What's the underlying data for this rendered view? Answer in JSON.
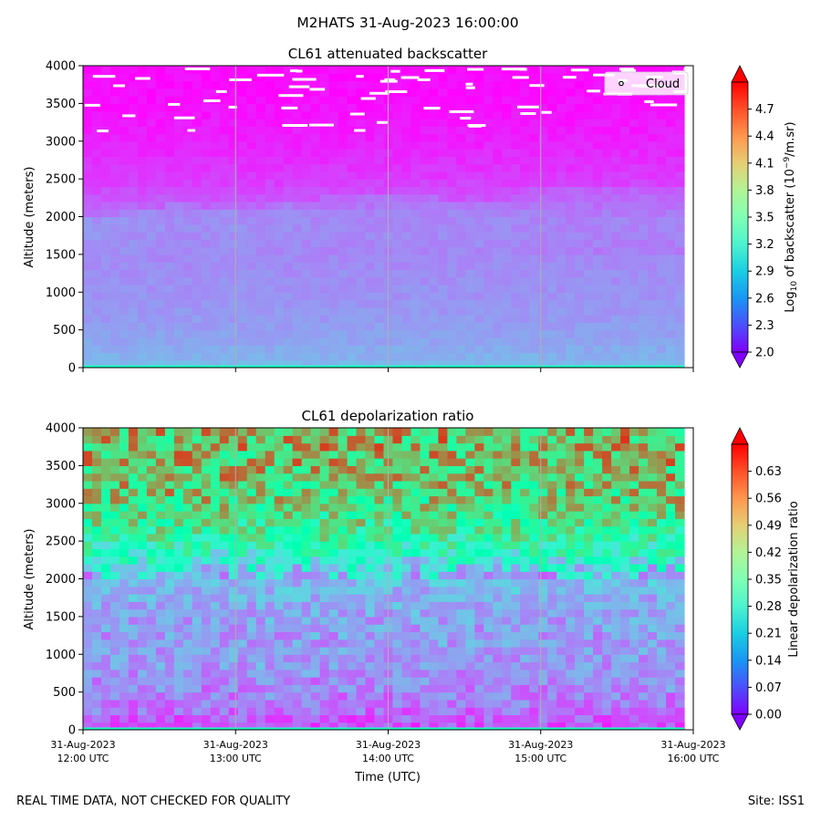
{
  "figure": {
    "title": "M2HATS 31-Aug-2023 16:00:00",
    "footer_left": "REAL TIME DATA, NOT CHECKED FOR QUALITY",
    "footer_right": "Site: ISS1",
    "xlabel": "Time (UTC)"
  },
  "chart_data": [
    {
      "type": "heatmap",
      "title": "CL61 attenuated backscatter",
      "ylabel": "Altitude (meters)",
      "ylim": [
        0,
        4000
      ],
      "yticks": [
        "0",
        "500",
        "1000",
        "1500",
        "2000",
        "2500",
        "3000",
        "3500",
        "4000"
      ],
      "x_ticks": [
        {
          "date": "31-Aug-2023",
          "time": "12:00 UTC"
        },
        {
          "date": "31-Aug-2023",
          "time": "13:00 UTC"
        },
        {
          "date": "31-Aug-2023",
          "time": "14:00 UTC"
        },
        {
          "date": "31-Aug-2023",
          "time": "15:00 UTC"
        },
        {
          "date": "31-Aug-2023",
          "time": "16:00 UTC"
        }
      ],
      "show_x_tick_labels": false,
      "colorbar": {
        "label_prefix": "Log",
        "label_sub": "10",
        "label_mid": " of backscatter (10",
        "label_sup": "−9",
        "label_suffix": "/m.sr)",
        "range": [
          2.0,
          5.0
        ],
        "ticks": [
          "2.0",
          "2.3",
          "2.6",
          "2.9",
          "3.2",
          "3.5",
          "3.8",
          "4.1",
          "4.4",
          "4.7"
        ],
        "colormap": "rainbow"
      },
      "legend": {
        "label": "Cloud",
        "marker": "white-dot",
        "placement": "top-right"
      },
      "grid": "vertical-major",
      "profile": {
        "altitude_m": [
          0,
          300,
          600,
          1000,
          1400,
          1800,
          2000,
          2200,
          2500,
          3000,
          3500,
          4000
        ],
        "value": [
          2.78,
          2.68,
          2.62,
          2.58,
          2.55,
          2.52,
          2.48,
          2.35,
          2.22,
          2.12,
          2.06,
          2.03
        ]
      },
      "layer_top_m": {
        "time_utc": [
          "12:00",
          "12:40",
          "13:00",
          "13:40",
          "14:20",
          "14:40",
          "15:00",
          "16:00"
        ],
        "altitude_m": [
          1950,
          2200,
          2050,
          2300,
          2250,
          2150,
          2450,
          2450
        ]
      }
    },
    {
      "type": "heatmap",
      "title": "CL61 depolarization ratio",
      "ylabel": "Altitude (meters)",
      "ylim": [
        0,
        4000
      ],
      "yticks": [
        "0",
        "500",
        "1000",
        "1500",
        "2000",
        "2500",
        "3000",
        "3500",
        "4000"
      ],
      "x_ticks": [
        {
          "date": "31-Aug-2023",
          "time": "12:00 UTC"
        },
        {
          "date": "31-Aug-2023",
          "time": "13:00 UTC"
        },
        {
          "date": "31-Aug-2023",
          "time": "14:00 UTC"
        },
        {
          "date": "31-Aug-2023",
          "time": "15:00 UTC"
        },
        {
          "date": "31-Aug-2023",
          "time": "16:00 UTC"
        }
      ],
      "show_x_tick_labels": true,
      "colorbar": {
        "label": "Linear depolarization ratio",
        "range": [
          0.0,
          0.7
        ],
        "ticks": [
          "0.00",
          "0.07",
          "0.14",
          "0.21",
          "0.28",
          "0.35",
          "0.42",
          "0.49",
          "0.56",
          "0.63"
        ],
        "colormap": "rainbow"
      },
      "grid": "vertical-major",
      "profile": {
        "altitude_m": [
          0,
          300,
          800,
          1200,
          1600,
          2000,
          2300,
          2600,
          3000,
          3400,
          4000
        ],
        "value": [
          0.06,
          0.11,
          0.14,
          0.15,
          0.16,
          0.19,
          0.3,
          0.4,
          0.47,
          0.51,
          0.52
        ]
      }
    }
  ]
}
